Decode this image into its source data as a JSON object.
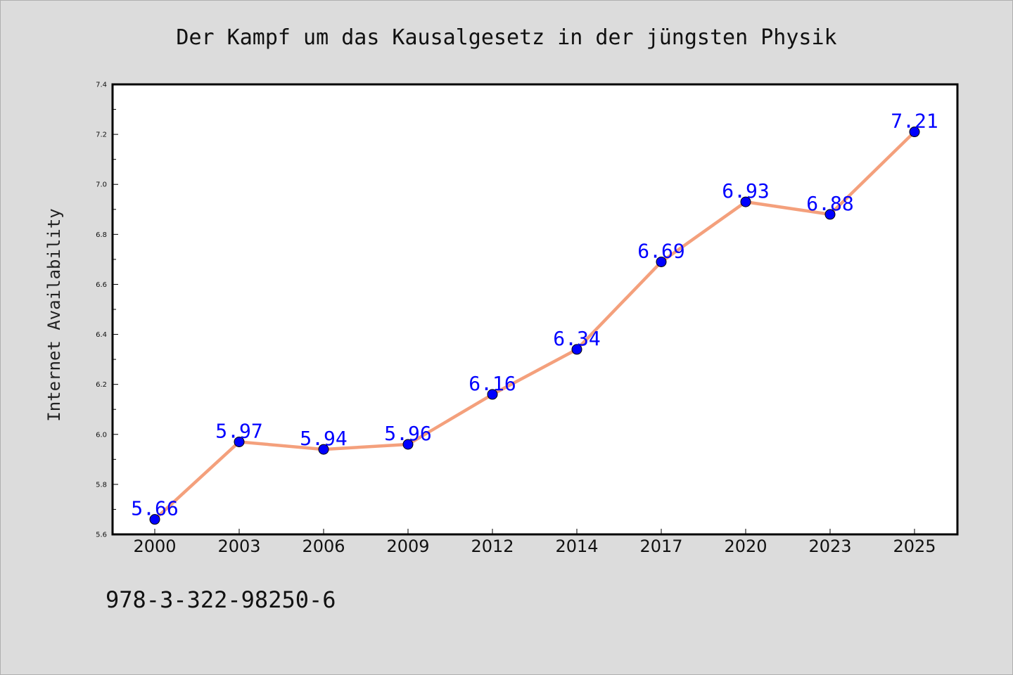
{
  "chart_data": {
    "type": "line",
    "title": "Der Kampf um das Kausalgesetz in der jüngsten Physik",
    "xlabel": "",
    "ylabel": "Internet Availability",
    "categories": [
      "2000",
      "2003",
      "2006",
      "2009",
      "2012",
      "2014",
      "2017",
      "2020",
      "2023",
      "2025"
    ],
    "series": [
      {
        "values": [
          5.66,
          5.97,
          5.94,
          5.96,
          6.16,
          6.34,
          6.69,
          6.93,
          6.88,
          7.21
        ],
        "labels": [
          "5.66",
          "5.97",
          "5.94",
          "5.96",
          "6.16",
          "6.34",
          "6.69",
          "6.93",
          "6.88",
          "7.21"
        ],
        "line_color": "#f4a07c",
        "marker_color": "#0000ff"
      }
    ],
    "ylim": [
      5.6,
      7.4
    ],
    "yticks": [
      "5.6",
      "5.8",
      "6.0",
      "6.2",
      "6.4",
      "6.6",
      "6.8",
      "7.0",
      "7.2",
      "7.4"
    ],
    "grid": false,
    "legend": "none"
  },
  "footer": {
    "isbn": "978-3-322-98250-6"
  },
  "colors": {
    "background": "#dcdcdc",
    "plot_area": "#ffffff",
    "label": "#0000ff"
  }
}
